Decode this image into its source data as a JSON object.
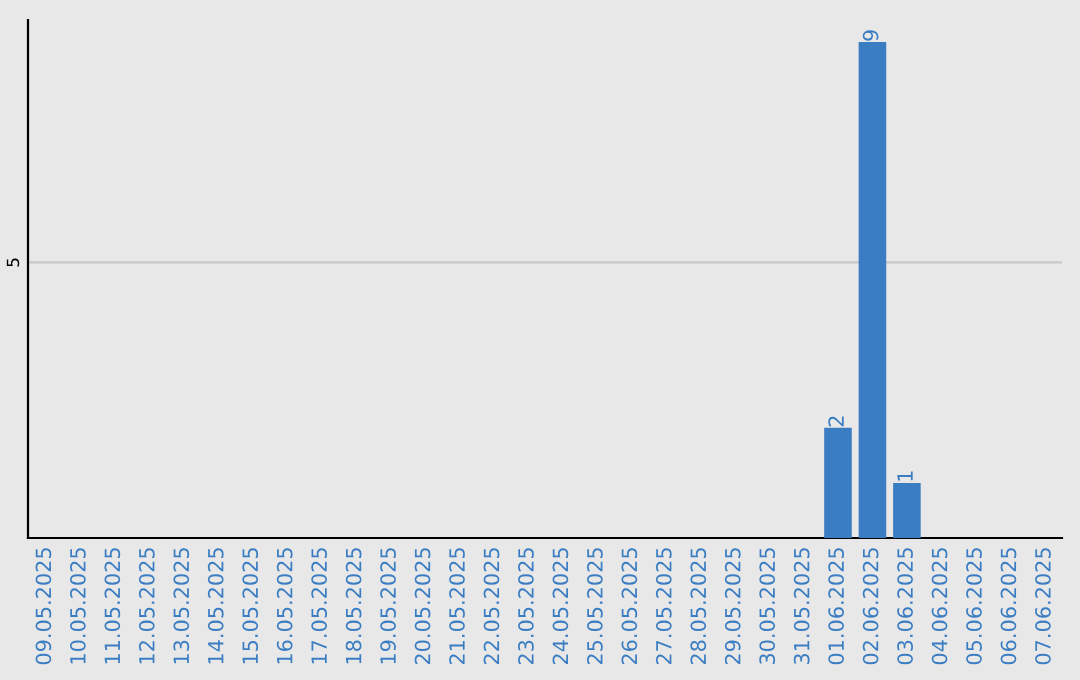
{
  "chart_data": {
    "type": "bar",
    "categories": [
      "09.05.2025",
      "10.05.2025",
      "11.05.2025",
      "12.05.2025",
      "13.05.2025",
      "14.05.2025",
      "15.05.2025",
      "16.05.2025",
      "17.05.2025",
      "18.05.2025",
      "19.05.2025",
      "20.05.2025",
      "21.05.2025",
      "22.05.2025",
      "23.05.2025",
      "24.05.2025",
      "25.05.2025",
      "26.05.2025",
      "27.05.2025",
      "28.05.2025",
      "29.05.2025",
      "30.05.2025",
      "31.05.2025",
      "01.06.2025",
      "02.06.2025",
      "03.06.2025",
      "04.06.2025",
      "05.06.2025",
      "06.06.2025",
      "07.06.2025"
    ],
    "values": [
      null,
      null,
      null,
      null,
      null,
      null,
      null,
      null,
      null,
      null,
      null,
      null,
      null,
      null,
      null,
      null,
      null,
      null,
      null,
      null,
      null,
      null,
      null,
      2,
      9,
      1,
      null,
      null,
      null,
      null
    ],
    "data_labels": true,
    "color": "#3a7dc2",
    "ylim": [
      0,
      9.4
    ],
    "yticks": [
      5
    ],
    "grid": "y"
  }
}
